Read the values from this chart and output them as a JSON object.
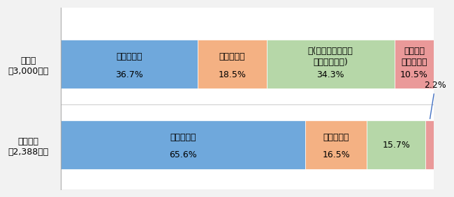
{
  "categories": [
    "無延滞者\n（2,388人）",
    "延滞者\n（3,000人）"
  ],
  "segments": [
    {
      "label": "奨学生本人",
      "values": [
        65.6,
        36.7
      ],
      "color": "#6fa8dc"
    },
    {
      "label": "本人と親等",
      "values": [
        16.5,
        18.5
      ],
      "color": "#f4b183"
    },
    {
      "label": "親（または祖父母等\nの家族、親戚）",
      "values": [
        15.7,
        34.3
      ],
      "color": "#b6d7a8"
    },
    {
      "label": "その他・\nわからない",
      "values": [
        2.2,
        10.5
      ],
      "color": "#ea9999"
    }
  ],
  "background_color": "#f2f2f2",
  "plot_bg_color": "#ffffff",
  "bar_height": 0.6,
  "label_fontsize": 9,
  "ytick_fontsize": 9
}
